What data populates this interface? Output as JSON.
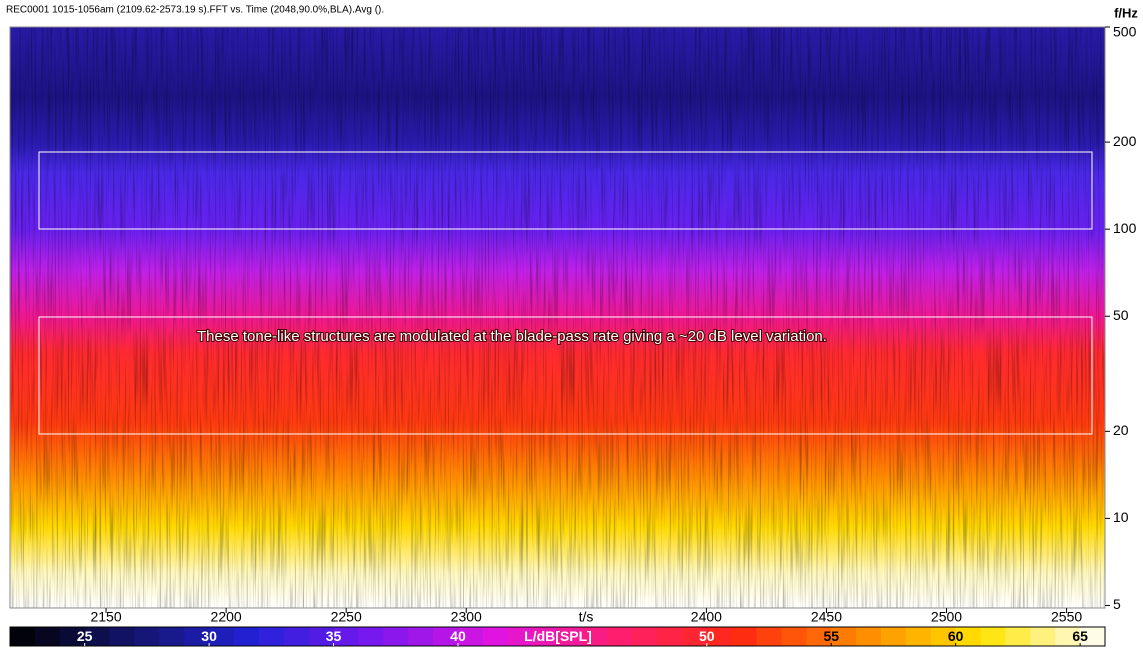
{
  "chart_data": {
    "type": "spectrogram",
    "title": "REC0001 1015-1056am (2109.62-2573.19 s).FFT vs. Time (2048,90.0%,BLA).Avg ().",
    "xlabel": "t/s",
    "ylabel": "f/Hz",
    "xlim": [
      2110,
      2566
    ],
    "xticks": [
      2150,
      2200,
      2250,
      2300,
      2400,
      2450,
      2500,
      2550
    ],
    "ylim": [
      4.9,
      500
    ],
    "yticks": [
      5,
      10,
      20,
      50,
      100,
      200,
      500
    ],
    "ylog": true,
    "colorbar": {
      "label": "L/dB[SPL]",
      "clim": [
        22,
        66
      ],
      "ticks": [
        25,
        30,
        35,
        40,
        50,
        55,
        60,
        65
      ],
      "colormap": [
        "#000000",
        "#14146a",
        "#2222d8",
        "#7a18f0",
        "#e014e0",
        "#ff1e6e",
        "#ff2a10",
        "#ff8a00",
        "#ffe400",
        "#ffffff"
      ]
    },
    "annotation": "These tone-like structures are modulated at the blade-pass rate giving a ~20 dB level variation."
  }
}
